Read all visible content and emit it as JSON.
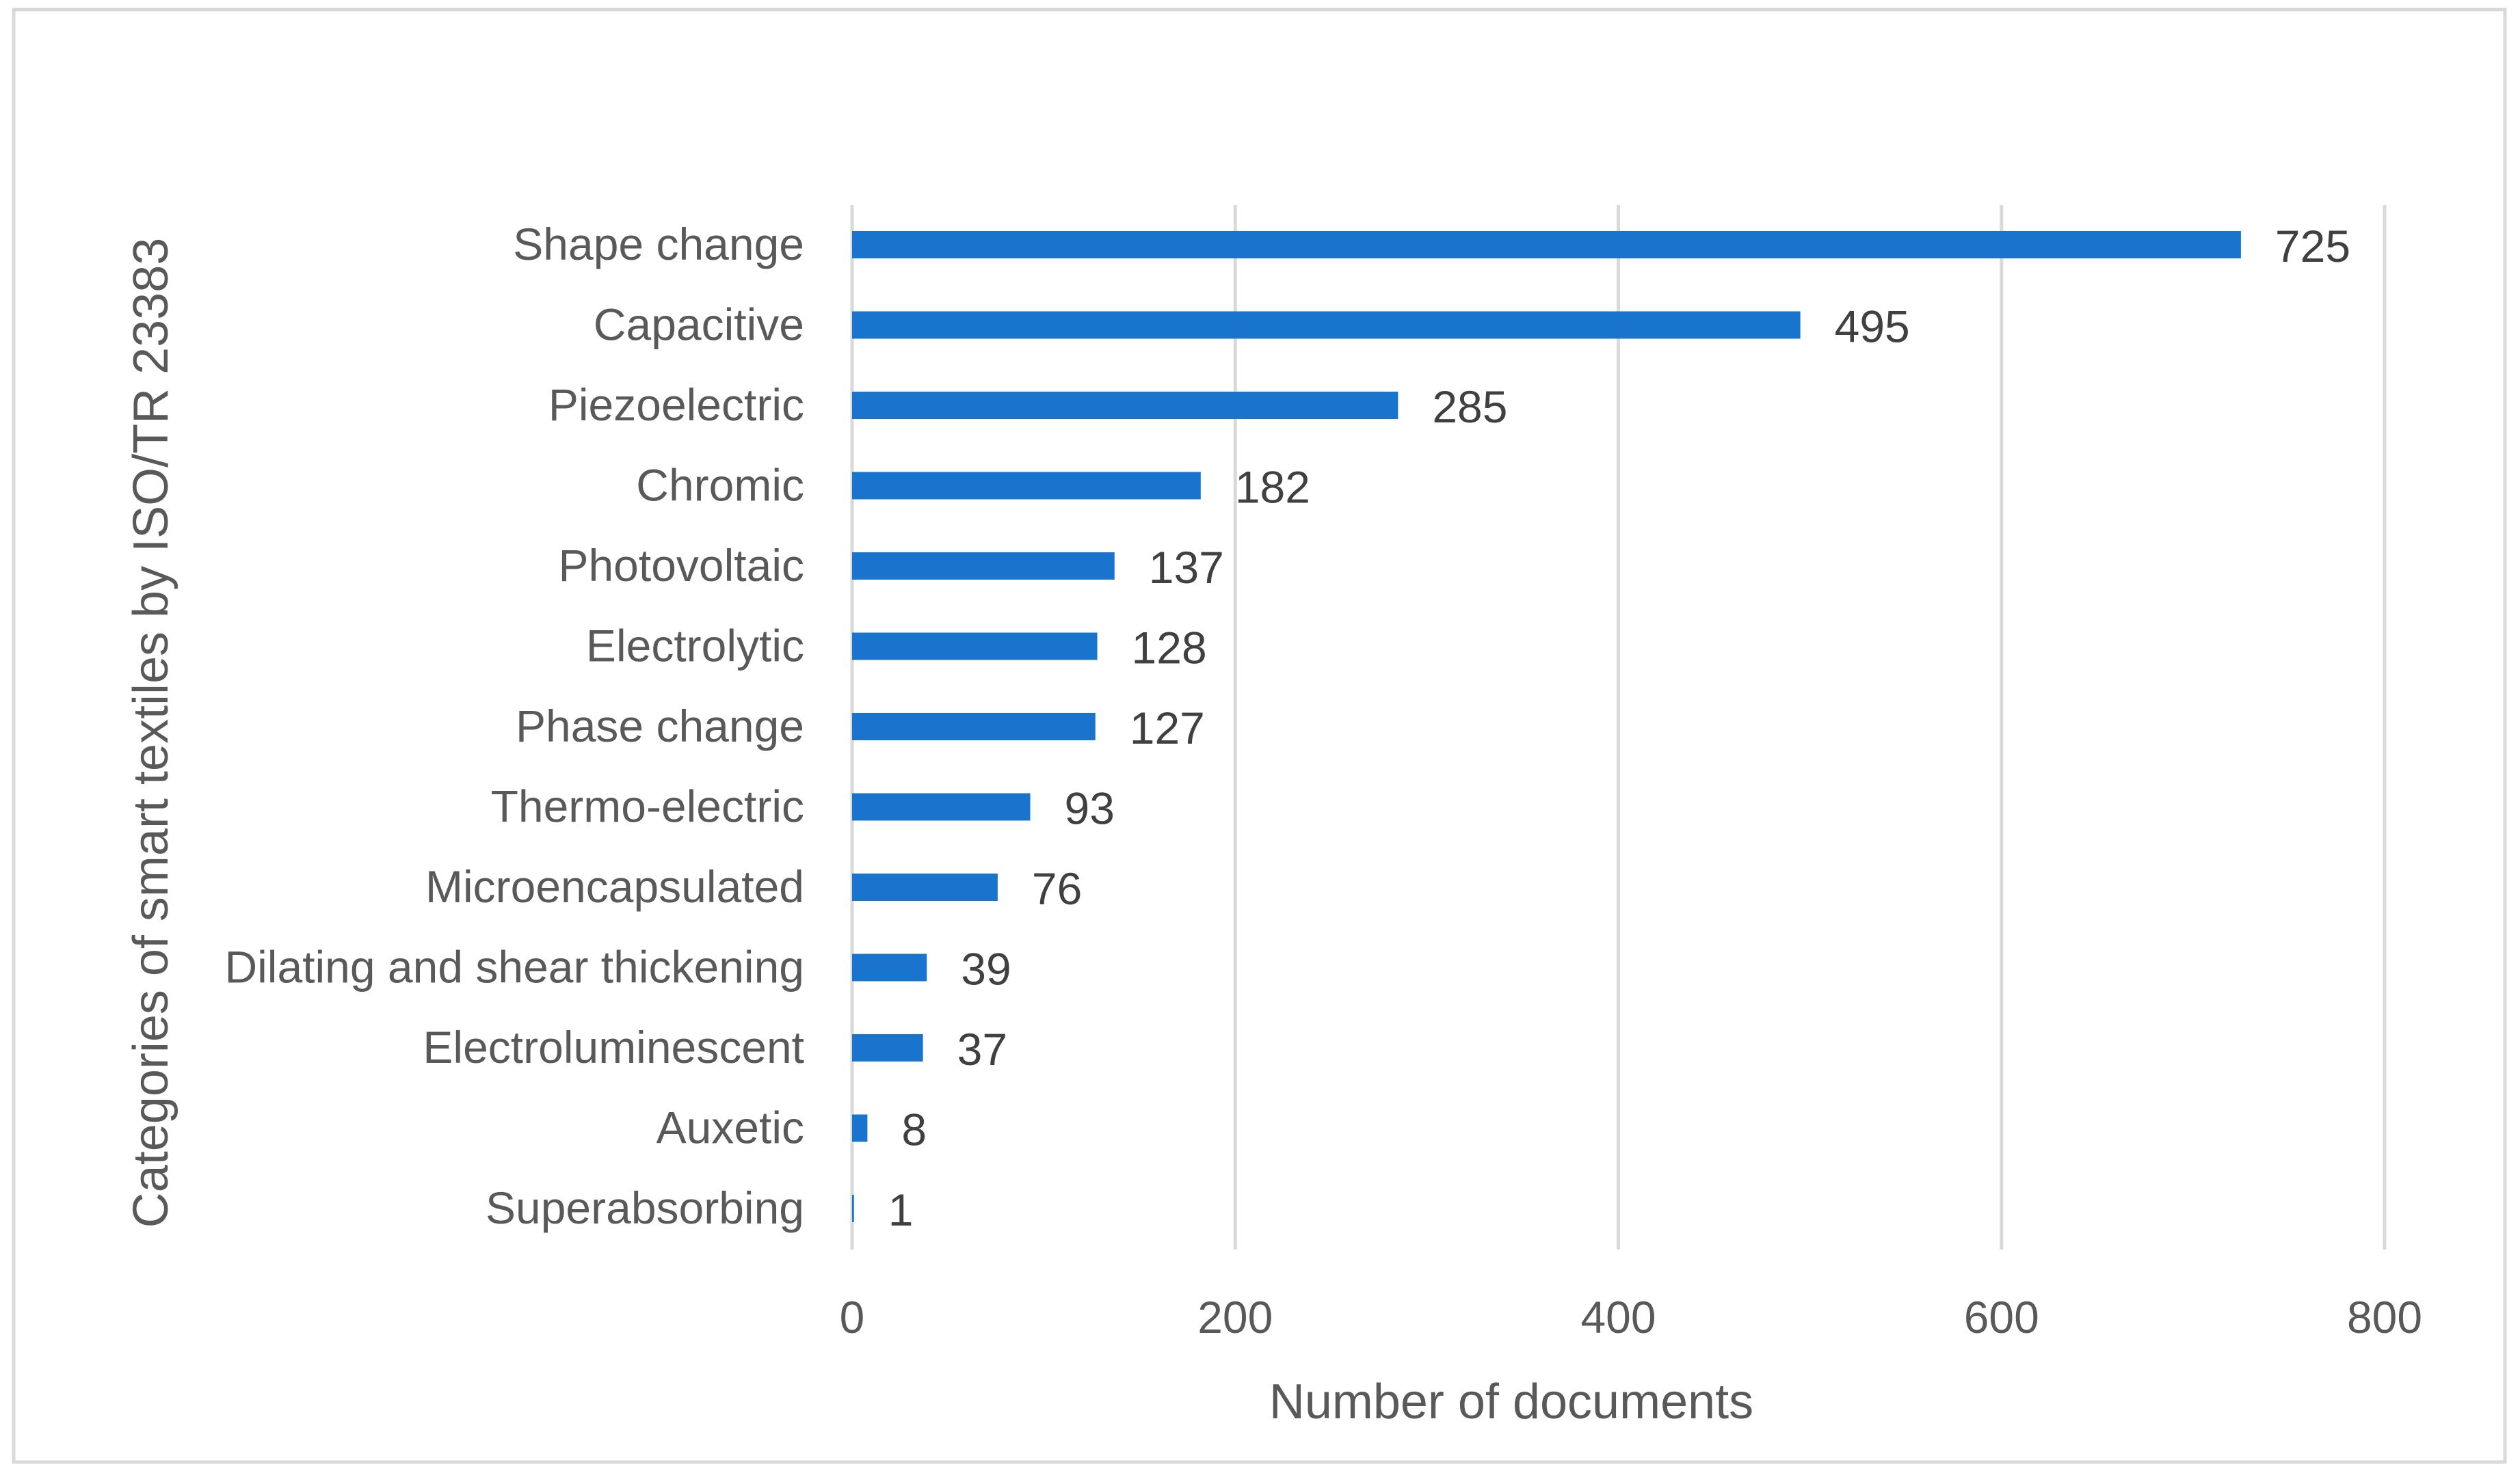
{
  "chart_data": {
    "type": "bar",
    "orientation": "horizontal",
    "categories": [
      "Shape change",
      "Capacitive",
      "Piezoelectric",
      "Chromic",
      "Photovoltaic",
      "Electrolytic",
      "Phase change",
      "Thermo-electric",
      "Microencapsulated",
      "Dilating and shear thickening",
      "Electroluminescent",
      "Auxetic",
      "Superabsorbing"
    ],
    "values": [
      725,
      495,
      285,
      182,
      137,
      128,
      127,
      93,
      76,
      39,
      37,
      8,
      1
    ],
    "title": "",
    "xlabel": "Number of documents",
    "ylabel": "Categories of smart textiles by ISO/TR 23383",
    "xlim": [
      0,
      800
    ],
    "xticks": [
      "0",
      "200",
      "400",
      "600",
      "800"
    ],
    "grid": true,
    "data_labels": true,
    "bar_color": "#1874CD",
    "gridline_color": "#D9D9D9",
    "frame_color": "#D9D9D9"
  }
}
